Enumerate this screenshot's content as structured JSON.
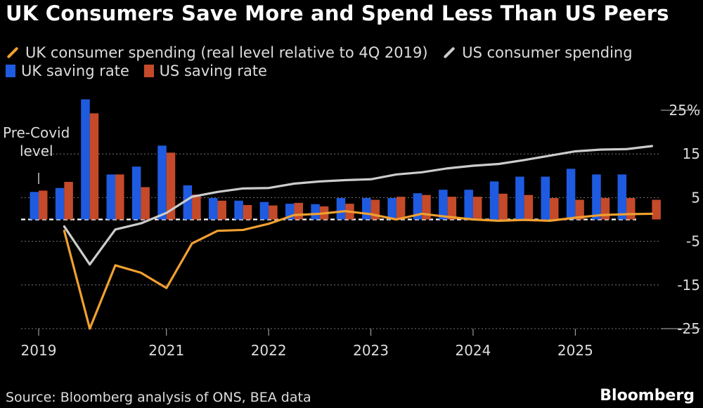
{
  "title": "UK Consumers Save More and Spend Less Than US Peers",
  "legend": {
    "uk_spending": "UK consumer spending (real level relative to 4Q 2019)",
    "us_spending": "US consumer spending",
    "uk_saving": "UK saving rate",
    "us_saving": "US saving rate"
  },
  "annotation": {
    "line1": "Pre-Covid",
    "line2": "level"
  },
  "source": "Source: Bloomberg analysis of ONS, BEA data",
  "brand": "Bloomberg",
  "colors": {
    "uk_saving": "#1f5be0",
    "us_saving": "#c44a2a",
    "uk_spending": "#f0a030",
    "us_spending": "#cccccc"
  },
  "chart_data": {
    "type": "bar",
    "x_ticks": [
      "2019",
      "2021",
      "2022",
      "2023",
      "2024",
      "2025"
    ],
    "y_ticks": [
      "25%",
      "15",
      "5",
      "-5",
      "-15",
      "-25"
    ],
    "ylim": [
      -25,
      25
    ],
    "quarters": [
      "2019Q3",
      "2019Q4",
      "2020Q1",
      "2020Q2",
      "2020Q3",
      "2020Q4",
      "2021Q1",
      "2021Q2",
      "2021Q3",
      "2021Q4",
      "2022Q1",
      "2022Q2",
      "2022Q3",
      "2022Q4",
      "2023Q1",
      "2023Q2",
      "2023Q3",
      "2023Q4",
      "2024Q1",
      "2024Q2",
      "2024Q3",
      "2024Q4",
      "2025Q1",
      "2025Q2",
      "2025Q3"
    ],
    "series": [
      {
        "name": "UK saving rate",
        "values": [
          6.3,
          7.2,
          27.5,
          10.3,
          12.1,
          16.9,
          7.8,
          4.9,
          4.3,
          4.0,
          3.6,
          3.5,
          4.9,
          4.9,
          4.9,
          6.0,
          6.8,
          6.8,
          8.7,
          9.8,
          9.8,
          11.6,
          10.3,
          10.3,
          0.0
        ]
      },
      {
        "name": "US saving rate",
        "values": [
          6.6,
          8.6,
          24.3,
          10.3,
          7.4,
          15.3,
          5.7,
          4.3,
          3.3,
          3.2,
          3.8,
          3.0,
          3.6,
          4.5,
          5.2,
          5.6,
          5.2,
          5.2,
          5.9,
          5.6,
          4.9,
          4.5,
          4.9,
          4.9,
          4.5
        ]
      },
      {
        "name": "UK consumer spending (real level relative to 4Q 2019)",
        "values": [
          -2.6,
          -25.0,
          -10.5,
          -12.2,
          -15.7,
          -5.5,
          -2.6,
          -2.4,
          -1.0,
          1.0,
          1.3,
          1.9,
          1.2,
          0.0,
          1.3,
          0.6,
          0.0,
          -0.3,
          -0.1,
          -0.3,
          0.4,
          1.0,
          1.2,
          1.3,
          1.5
        ]
      },
      {
        "name": "US consumer spending",
        "values": [
          -1.6,
          -10.3,
          -2.3,
          -0.9,
          1.5,
          5.2,
          6.3,
          7.1,
          7.2,
          8.2,
          8.7,
          9.0,
          9.2,
          10.3,
          10.8,
          11.7,
          12.3,
          12.7,
          13.6,
          14.6,
          15.6,
          16.0,
          16.1,
          16.8,
          17.3
        ]
      }
    ]
  }
}
